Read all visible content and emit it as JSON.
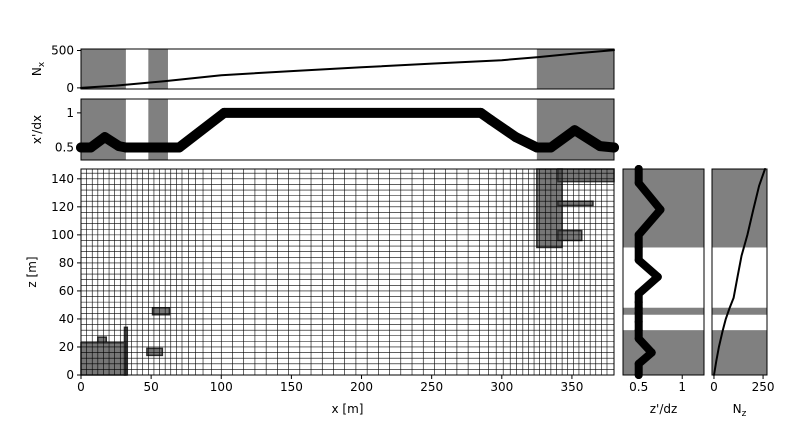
{
  "chart_data": [
    {
      "id": "nx",
      "type": "line",
      "ylabel": "N_x",
      "xlim": [
        0,
        380
      ],
      "ylim": [
        -15,
        520
      ],
      "yticks": [
        0,
        500
      ],
      "xticks": [],
      "series": [
        {
          "x": [
            0,
            25,
            60,
            100,
            150,
            200,
            250,
            300,
            325,
            355,
            380
          ],
          "y": [
            0,
            30,
            90,
            170,
            225,
            275,
            325,
            370,
            410,
            465,
            505
          ]
        }
      ],
      "shaded_x": [
        [
          0,
          32
        ],
        [
          48,
          62
        ],
        [
          325,
          380
        ]
      ]
    },
    {
      "id": "dx",
      "type": "line",
      "ylabel": "x'/dx",
      "xlim": [
        0,
        380
      ],
      "ylim": [
        0.32,
        1.2
      ],
      "yticks": [
        0.5,
        1.0
      ],
      "xticks": [],
      "series": [
        {
          "x": [
            0,
            7,
            17,
            27,
            32,
            48,
            62,
            70,
            102,
            285,
            292,
            310,
            325,
            335,
            352,
            370,
            380
          ],
          "y": [
            0.5,
            0.5,
            0.65,
            0.52,
            0.5,
            0.5,
            0.5,
            0.5,
            1.0,
            1.0,
            0.9,
            0.65,
            0.5,
            0.5,
            0.75,
            0.52,
            0.5
          ]
        }
      ],
      "shaded_x": [
        [
          0,
          32
        ],
        [
          48,
          62
        ],
        [
          325,
          380
        ]
      ]
    },
    {
      "id": "grid",
      "type": "heatmap",
      "xlabel": "x [m]",
      "ylabel": "z [m]",
      "xlim": [
        0,
        380
      ],
      "ylim": [
        0,
        147
      ],
      "xticks": [
        0,
        50,
        100,
        150,
        200,
        250,
        300,
        350
      ],
      "yticks": [
        0,
        20,
        40,
        60,
        80,
        100,
        120,
        140
      ],
      "xcells": [
        0,
        4,
        8,
        12,
        16,
        20,
        24,
        28,
        32,
        36,
        40,
        44,
        48,
        52,
        56,
        60,
        64,
        68,
        72,
        76.5,
        81.5,
        87,
        93,
        100,
        108,
        116,
        124,
        132,
        140,
        148,
        156,
        164,
        172,
        180,
        188,
        196,
        204,
        212,
        220,
        228,
        236,
        244,
        252,
        260,
        268,
        276,
        284,
        290.5,
        296,
        301,
        306,
        310.5,
        315,
        319,
        323,
        327,
        331,
        335,
        339,
        343,
        347,
        351,
        355,
        359,
        363,
        367,
        371,
        375,
        380
      ],
      "zcells": [
        0,
        4,
        8,
        12,
        16,
        20,
        24,
        28,
        32,
        36,
        40,
        44,
        48,
        52,
        56,
        60,
        64,
        68,
        72,
        76,
        80,
        84,
        88,
        92,
        96,
        100,
        104,
        108,
        112,
        116,
        120,
        124,
        128,
        132,
        136,
        140,
        144,
        147
      ],
      "blocks": [
        {
          "x": [
            0,
            32
          ],
          "z": [
            0,
            23
          ]
        },
        {
          "x": [
            12,
            18
          ],
          "z": [
            23,
            27
          ]
        },
        {
          "x": [
            31,
            33
          ],
          "z": [
            0,
            34
          ]
        },
        {
          "x": [
            47,
            58
          ],
          "z": [
            14,
            19
          ]
        },
        {
          "x": [
            51,
            63
          ],
          "z": [
            43,
            48
          ]
        },
        {
          "x": [
            325,
            343
          ],
          "z": [
            91,
            147
          ]
        },
        {
          "x": [
            340,
            380
          ],
          "z": [
            138,
            147
          ]
        },
        {
          "x": [
            340,
            365
          ],
          "z": [
            121,
            124
          ]
        },
        {
          "x": [
            340,
            357
          ],
          "z": [
            96,
            103
          ]
        }
      ]
    },
    {
      "id": "dz",
      "type": "line",
      "xlabel": "z'/dz",
      "xlim": [
        0.32,
        1.25
      ],
      "ylim": [
        0,
        147
      ],
      "xticks": [
        0.5,
        1.0
      ],
      "yticks": [],
      "series": [
        {
          "x": [
            0.5,
            0.5,
            0.65,
            0.5,
            0.5,
            0.5,
            0.5,
            0.5,
            0.5,
            0.5,
            0.72,
            0.5,
            0.5,
            0.5,
            0.75,
            0.5,
            0.5
          ],
          "y": [
            0,
            8,
            16,
            26,
            32,
            38,
            44,
            48,
            52,
            58,
            70,
            82,
            91,
            100,
            118,
            137,
            147
          ]
        }
      ],
      "shaded_y": [
        [
          0,
          32
        ],
        [
          43,
          48
        ],
        [
          91,
          147
        ]
      ]
    },
    {
      "id": "nz",
      "type": "line",
      "xlabel": "N_z",
      "xlim": [
        -10,
        270
      ],
      "ylim": [
        0,
        147
      ],
      "xticks": [
        0,
        250
      ],
      "yticks": [],
      "series": [
        {
          "x": [
            0,
            12,
            25,
            45,
            60,
            80,
            100,
            120,
            140,
            170,
            200,
            230,
            260
          ],
          "y": [
            0,
            10,
            20,
            32,
            40,
            48,
            55,
            70,
            85,
            100,
            118,
            135,
            147
          ]
        }
      ],
      "shaded_y": [
        [
          0,
          32
        ],
        [
          43,
          48
        ],
        [
          91,
          147
        ]
      ]
    }
  ]
}
